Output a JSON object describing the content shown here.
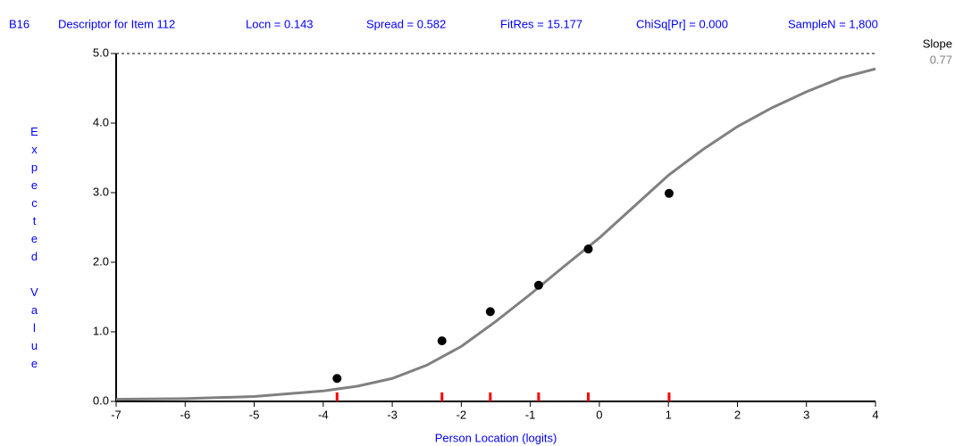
{
  "header": {
    "item": "B16",
    "descriptor": "Descriptor for Item 112",
    "locn": "Locn = 0.143",
    "spread": "Spread = 0.582",
    "fitres": "FitRes = 15.177",
    "chisq": "ChiSq[Pr] = 0.000",
    "samplen": "SampleN = 1,800"
  },
  "slope": {
    "label": "Slope",
    "value": "0.77"
  },
  "chart_data": {
    "type": "scatter",
    "x_label": "Person Location (logits)",
    "y_label": "Expected Value",
    "xlim": [
      -7,
      4
    ],
    "xticks": [
      -7,
      -6,
      -5,
      -4,
      -3,
      -2,
      -1,
      0,
      1,
      2,
      3,
      4
    ],
    "ylim": [
      0,
      5
    ],
    "yticks": [
      {
        "value": 0,
        "label": "0.0"
      },
      {
        "value": 1,
        "label": "1.0"
      },
      {
        "value": 2,
        "label": "2.0"
      },
      {
        "value": 3,
        "label": "3.0"
      },
      {
        "value": 4,
        "label": "4.0"
      },
      {
        "value": 5,
        "label": "5.0"
      }
    ],
    "series": [
      {
        "style": "line",
        "color": "#808080",
        "x": [
          -7,
          -6,
          -5,
          -4,
          -3.5,
          -3,
          -2.5,
          -2,
          -1.5,
          -1,
          -0.5,
          0,
          0.5,
          1,
          1.5,
          2,
          2.5,
          3,
          3.5,
          4
        ],
        "values": [
          0.03,
          0.04,
          0.07,
          0.15,
          0.22,
          0.33,
          0.52,
          0.79,
          1.15,
          1.54,
          1.95,
          2.35,
          2.8,
          3.25,
          3.62,
          3.95,
          4.22,
          4.45,
          4.65,
          4.78
        ]
      },
      {
        "style": "markers",
        "color": "#000000",
        "tick_color": "#ff0000",
        "x": [
          -3.8,
          -2.28,
          -1.58,
          -0.88,
          -0.16,
          1.01
        ],
        "values": [
          0.33,
          0.87,
          1.29,
          1.67,
          2.19,
          2.99
        ]
      }
    ]
  }
}
